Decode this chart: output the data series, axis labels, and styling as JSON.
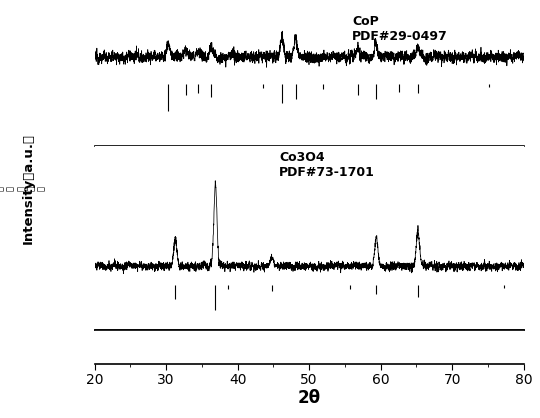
{
  "xmin": 20,
  "xmax": 80,
  "xlabel": "2θ",
  "cop_label": "CoP\nPDF#29-0497",
  "co3o4_label": "Co3O4\nPDF#73-1701",
  "cop_peaks": [
    30.3,
    32.8,
    34.5,
    36.3,
    46.2,
    48.1,
    56.8,
    59.3,
    65.2
  ],
  "cop_peak_amps": [
    0.06,
    0.035,
    0.03,
    0.045,
    0.09,
    0.08,
    0.04,
    0.055,
    0.04
  ],
  "cop_ref_peaks": [
    30.3,
    32.8,
    34.5,
    36.3,
    43.5,
    46.2,
    48.1,
    52.0,
    56.8,
    59.3,
    62.5,
    65.2,
    75.2
  ],
  "cop_ref_heights": [
    0.5,
    0.2,
    0.17,
    0.25,
    0.08,
    0.35,
    0.28,
    0.1,
    0.2,
    0.28,
    0.15,
    0.18,
    0.07
  ],
  "co3o4_peaks": [
    31.3,
    36.9,
    44.8,
    59.4,
    65.2
  ],
  "co3o4_peak_amps": [
    0.18,
    0.5,
    0.05,
    0.18,
    0.22
  ],
  "co3o4_ref_peaks": [
    31.3,
    36.9,
    38.6,
    44.8,
    55.7,
    59.4,
    65.2,
    77.3
  ],
  "co3o4_ref_heights": [
    0.35,
    0.6,
    0.1,
    0.14,
    0.08,
    0.22,
    0.28,
    0.06
  ],
  "background_color": "#ffffff",
  "line_color": "#000000",
  "noise_amplitude": 0.022,
  "cop_baseline": 0.1,
  "co3o4_baseline": 0.1
}
